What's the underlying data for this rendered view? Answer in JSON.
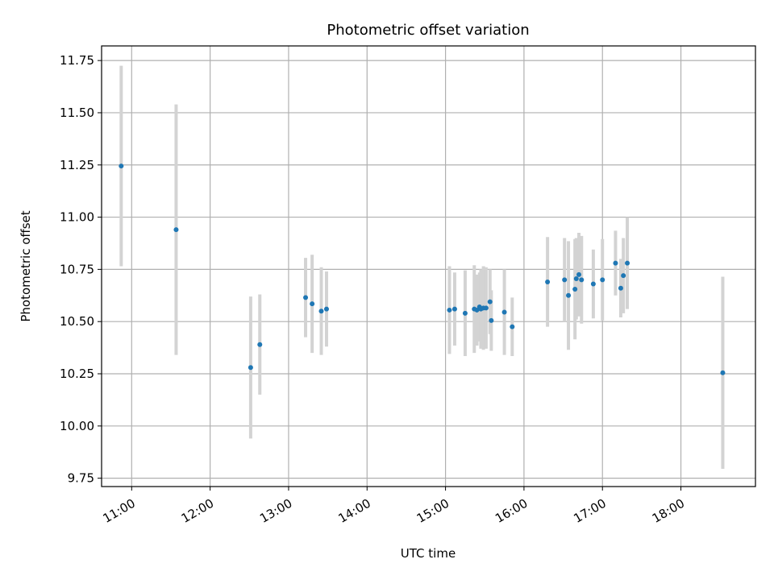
{
  "chart_data": {
    "type": "scatter",
    "title": "Photometric offset variation",
    "xlabel": "UTC time",
    "ylabel": "Photometric offset",
    "grid": true,
    "xlim": [
      "10:37",
      "18:57"
    ],
    "ylim": [
      9.71,
      11.82
    ],
    "x_ticks": [
      "11:00",
      "12:00",
      "13:00",
      "14:00",
      "15:00",
      "16:00",
      "17:00",
      "18:00"
    ],
    "y_ticks": [
      "9.75",
      "10.00",
      "10.25",
      "10.50",
      "10.75",
      "11.00",
      "11.25",
      "11.50",
      "11.75"
    ],
    "colors": {
      "point": "#1f77b4",
      "errorbar": "#d3d3d3",
      "grid": "#b0b0b0"
    },
    "series": [
      {
        "points": [
          {
            "x": "10:52",
            "y": 11.245,
            "err": 0.48
          },
          {
            "x": "11:34",
            "y": 10.94,
            "err": 0.6
          },
          {
            "x": "12:31",
            "y": 10.28,
            "err": 0.34
          },
          {
            "x": "12:38",
            "y": 10.39,
            "err": 0.24
          },
          {
            "x": "13:13",
            "y": 10.615,
            "err": 0.19
          },
          {
            "x": "13:18",
            "y": 10.585,
            "err": 0.235
          },
          {
            "x": "13:25",
            "y": 10.55,
            "err": 0.21
          },
          {
            "x": "13:29",
            "y": 10.56,
            "err": 0.18
          },
          {
            "x": "15:03",
            "y": 10.555,
            "err": 0.21
          },
          {
            "x": "15:07",
            "y": 10.56,
            "err": 0.175
          },
          {
            "x": "15:15",
            "y": 10.54,
            "err": 0.205
          },
          {
            "x": "15:22",
            "y": 10.56,
            "err": 0.21
          },
          {
            "x": "15:24",
            "y": 10.555,
            "err": 0.17
          },
          {
            "x": "15:26",
            "y": 10.57,
            "err": 0.165
          },
          {
            "x": "15:27",
            "y": 10.56,
            "err": 0.19
          },
          {
            "x": "15:29",
            "y": 10.565,
            "err": 0.2
          },
          {
            "x": "15:31",
            "y": 10.565,
            "err": 0.195
          },
          {
            "x": "15:34",
            "y": 10.595,
            "err": 0.155
          },
          {
            "x": "15:35",
            "y": 10.505,
            "err": 0.145
          },
          {
            "x": "15:45",
            "y": 10.545,
            "err": 0.205
          },
          {
            "x": "15:51",
            "y": 10.475,
            "err": 0.14
          },
          {
            "x": "16:18",
            "y": 10.69,
            "err": 0.215
          },
          {
            "x": "16:31",
            "y": 10.7,
            "err": 0.2
          },
          {
            "x": "16:34",
            "y": 10.625,
            "err": 0.26
          },
          {
            "x": "16:39",
            "y": 10.655,
            "err": 0.24
          },
          {
            "x": "16:40",
            "y": 10.705,
            "err": 0.195
          },
          {
            "x": "16:42",
            "y": 10.725,
            "err": 0.2
          },
          {
            "x": "16:44",
            "y": 10.7,
            "err": 0.21
          },
          {
            "x": "16:53",
            "y": 10.68,
            "err": 0.165
          },
          {
            "x": "17:00",
            "y": 10.7,
            "err": 0.195
          },
          {
            "x": "17:10",
            "y": 10.78,
            "err": 0.155
          },
          {
            "x": "17:14",
            "y": 10.66,
            "err": 0.14
          },
          {
            "x": "17:16",
            "y": 10.72,
            "err": 0.18
          },
          {
            "x": "17:19",
            "y": 10.78,
            "err": 0.22
          },
          {
            "x": "18:32",
            "y": 10.255,
            "err": 0.46
          }
        ]
      }
    ]
  }
}
